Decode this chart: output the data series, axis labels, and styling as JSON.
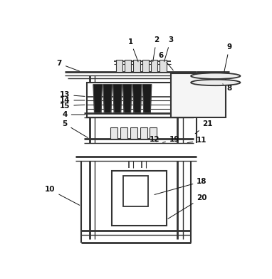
{
  "bg_color": "#ffffff",
  "lc": "#333333",
  "dc": "#111111",
  "fig_width": 3.82,
  "fig_height": 3.92
}
